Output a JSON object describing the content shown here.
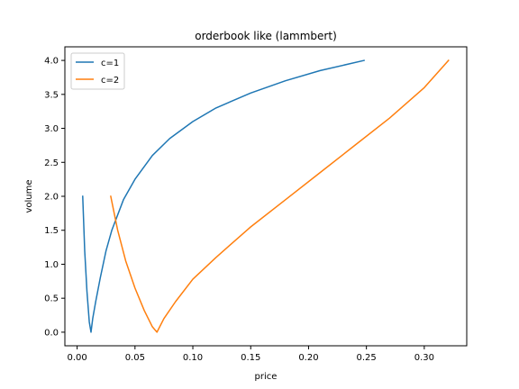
{
  "chart_data": {
    "type": "line",
    "title": "orderbook like (lammbert)",
    "xlabel": "price",
    "ylabel": "volume",
    "xlim": [
      -0.0106,
      0.3367
    ],
    "ylim": [
      -0.2,
      4.2
    ],
    "xticks": [
      0.0,
      0.05,
      0.1,
      0.15,
      0.2,
      0.25,
      0.3
    ],
    "xtick_labels": [
      "0.00",
      "0.05",
      "0.10",
      "0.15",
      "0.20",
      "0.25",
      "0.30"
    ],
    "yticks": [
      0.0,
      0.5,
      1.0,
      1.5,
      2.0,
      2.5,
      3.0,
      3.5,
      4.0
    ],
    "ytick_labels": [
      "0.0",
      "0.5",
      "1.0",
      "1.5",
      "2.0",
      "2.5",
      "3.0",
      "3.5",
      "4.0"
    ],
    "grid": false,
    "legend_position": "top-left",
    "series": [
      {
        "name": "c=1",
        "color": "#1f77b4",
        "x": [
          0.0048,
          0.0065,
          0.0085,
          0.0105,
          0.012,
          0.0135,
          0.016,
          0.02,
          0.025,
          0.03,
          0.04,
          0.05,
          0.065,
          0.08,
          0.1,
          0.12,
          0.15,
          0.18,
          0.21,
          0.248
        ],
        "y": [
          2.0,
          1.2,
          0.6,
          0.15,
          0.0,
          0.2,
          0.45,
          0.8,
          1.2,
          1.5,
          1.95,
          2.25,
          2.6,
          2.85,
          3.1,
          3.3,
          3.52,
          3.7,
          3.85,
          4.0
        ]
      },
      {
        "name": "c=2",
        "color": "#ff7f0e",
        "x": [
          0.029,
          0.035,
          0.042,
          0.05,
          0.058,
          0.065,
          0.069,
          0.075,
          0.085,
          0.1,
          0.12,
          0.15,
          0.18,
          0.21,
          0.24,
          0.27,
          0.3,
          0.321
        ],
        "y": [
          2.0,
          1.5,
          1.05,
          0.65,
          0.32,
          0.08,
          0.0,
          0.2,
          0.45,
          0.78,
          1.1,
          1.55,
          1.95,
          2.35,
          2.75,
          3.15,
          3.6,
          4.0
        ]
      }
    ]
  }
}
